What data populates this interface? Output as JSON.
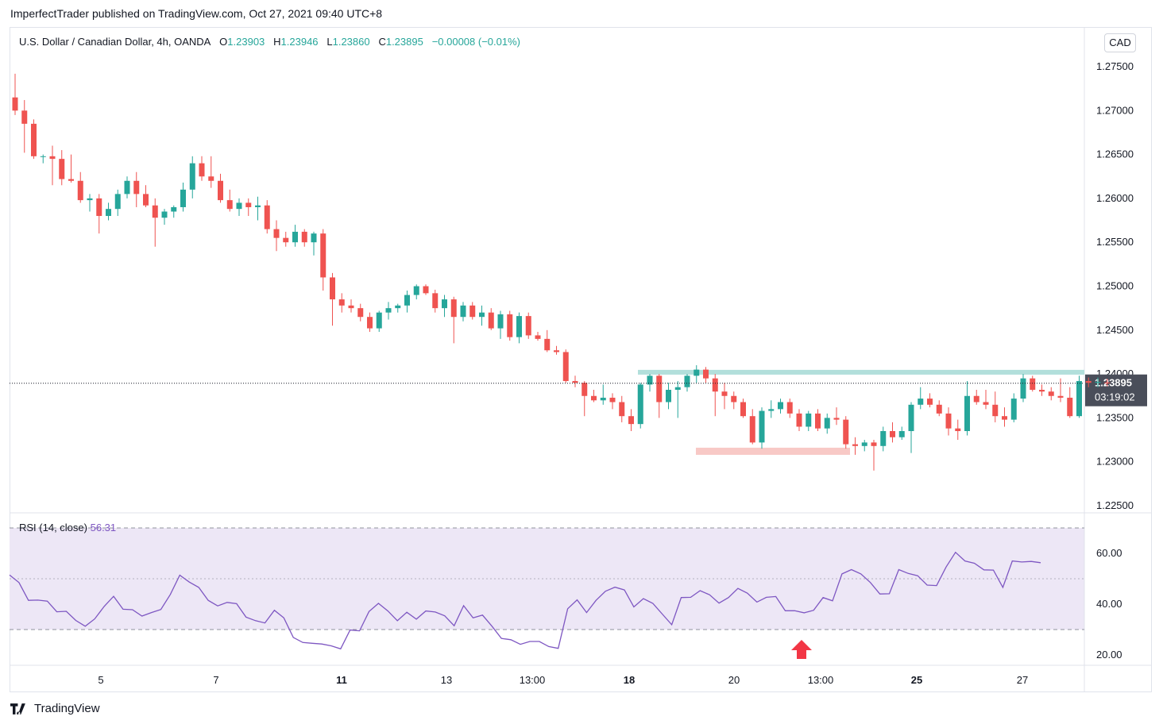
{
  "header": {
    "published": "ImperfectTrader published on TradingView.com, Oct 27, 2021 09:40 UTC+8"
  },
  "legend": {
    "symbol": "U.S. Dollar / Canadian Dollar, 4h, OANDA",
    "o_label": "O",
    "o": "1.23903",
    "h_label": "H",
    "h": "1.23946",
    "l_label": "L",
    "l": "1.23860",
    "c_label": "C",
    "c": "1.23895",
    "change": "−0.00008 (−0.01%)"
  },
  "currency_button": "CAD",
  "last_price": {
    "value": "1.23895",
    "countdown": "03:19:02"
  },
  "rsi_legend": {
    "label": "RSI (14, close)",
    "value": "56.31"
  },
  "footer": {
    "brand": "TradingView"
  },
  "colors": {
    "up": "#26a69a",
    "down": "#ef5350",
    "rsi": "#7e57c2",
    "rsi_band": "#ede7f6",
    "resistance": "#b2dfdb",
    "support": "#f8c9c6",
    "arrow": "#f23645"
  },
  "chart_data": [
    {
      "type": "candlestick",
      "title": "U.S. Dollar / Canadian Dollar, 4h, OANDA",
      "x_tick_labels": [
        "5",
        "7",
        "11",
        "13",
        "13:00",
        "18",
        "20",
        "13:00",
        "25",
        "27"
      ],
      "y_tick_labels": [
        "1.27500",
        "1.27000",
        "1.26500",
        "1.26000",
        "1.25500",
        "1.25000",
        "1.24500",
        "1.24000",
        "1.23500",
        "1.23000",
        "1.22500"
      ],
      "ylim": [
        1.222,
        1.279
      ],
      "candles": [
        [
          1.2715,
          1.2742,
          1.2695,
          1.27
        ],
        [
          1.27,
          1.2712,
          1.2652,
          1.2685
        ],
        [
          1.2685,
          1.269,
          1.2645,
          1.2648
        ],
        [
          1.2648,
          1.265,
          1.264,
          1.2648
        ],
        [
          1.2648,
          1.266,
          1.2615,
          1.2645
        ],
        [
          1.2645,
          1.2655,
          1.2615,
          1.2622
        ],
        [
          1.2622,
          1.265,
          1.2618,
          1.262
        ],
        [
          1.262,
          1.263,
          1.2595,
          1.2598
        ],
        [
          1.2598,
          1.2605,
          1.2585,
          1.26
        ],
        [
          1.26,
          1.2605,
          1.256,
          1.258
        ],
        [
          1.258,
          1.2595,
          1.2575,
          1.2588
        ],
        [
          1.2588,
          1.261,
          1.258,
          1.2605
        ],
        [
          1.2605,
          1.2625,
          1.26,
          1.262
        ],
        [
          1.262,
          1.263,
          1.259,
          1.2605
        ],
        [
          1.2605,
          1.2615,
          1.259,
          1.2592
        ],
        [
          1.2592,
          1.26,
          1.2545,
          1.2578
        ],
        [
          1.2578,
          1.2588,
          1.257,
          1.2585
        ],
        [
          1.2585,
          1.2592,
          1.2578,
          1.259
        ],
        [
          1.259,
          1.2618,
          1.2585,
          1.261
        ],
        [
          1.261,
          1.2648,
          1.26,
          1.264
        ],
        [
          1.264,
          1.2648,
          1.262,
          1.2625
        ],
        [
          1.2625,
          1.2648,
          1.2612,
          1.262
        ],
        [
          1.262,
          1.2628,
          1.2595,
          1.2598
        ],
        [
          1.2598,
          1.261,
          1.2585,
          1.2588
        ],
        [
          1.2588,
          1.26,
          1.258,
          1.2595
        ],
        [
          1.2595,
          1.26,
          1.258,
          1.259
        ],
        [
          1.259,
          1.2602,
          1.2575,
          1.2592
        ],
        [
          1.2592,
          1.2598,
          1.256,
          1.2565
        ],
        [
          1.2565,
          1.2575,
          1.254,
          1.2555
        ],
        [
          1.2555,
          1.2562,
          1.2545,
          1.255
        ],
        [
          1.255,
          1.257,
          1.2545,
          1.2562
        ],
        [
          1.2562,
          1.2565,
          1.2545,
          1.255
        ],
        [
          1.255,
          1.2562,
          1.2535,
          1.256
        ],
        [
          1.256,
          1.2565,
          1.2495,
          1.251
        ],
        [
          1.251,
          1.2515,
          1.2455,
          1.2485
        ],
        [
          1.2485,
          1.2492,
          1.247,
          1.2478
        ],
        [
          1.2478,
          1.2485,
          1.247,
          1.2475
        ],
        [
          1.2475,
          1.248,
          1.246,
          1.2465
        ],
        [
          1.2465,
          1.247,
          1.2448,
          1.2452
        ],
        [
          1.2452,
          1.2472,
          1.2448,
          1.247
        ],
        [
          1.247,
          1.2482,
          1.2462,
          1.2475
        ],
        [
          1.2475,
          1.248,
          1.247,
          1.2478
        ],
        [
          1.2478,
          1.2495,
          1.247,
          1.249
        ],
        [
          1.249,
          1.2502,
          1.2485,
          1.25
        ],
        [
          1.25,
          1.2502,
          1.249,
          1.2492
        ],
        [
          1.2492,
          1.2496,
          1.247,
          1.2475
        ],
        [
          1.2475,
          1.249,
          1.2465,
          1.2485
        ],
        [
          1.2485,
          1.2488,
          1.2435,
          1.2465
        ],
        [
          1.2465,
          1.2482,
          1.246,
          1.2478
        ],
        [
          1.2478,
          1.2482,
          1.2462,
          1.2465
        ],
        [
          1.2465,
          1.2478,
          1.2455,
          1.247
        ],
        [
          1.247,
          1.2475,
          1.245,
          1.2452
        ],
        [
          1.2452,
          1.2472,
          1.244,
          1.2468
        ],
        [
          1.2468,
          1.2472,
          1.2438,
          1.2442
        ],
        [
          1.2442,
          1.247,
          1.2435,
          1.2466
        ],
        [
          1.2466,
          1.247,
          1.244,
          1.2444
        ],
        [
          1.2444,
          1.2448,
          1.2438,
          1.244
        ],
        [
          1.244,
          1.245,
          1.2425,
          1.2427
        ],
        [
          1.2427,
          1.2432,
          1.2422,
          1.2425
        ],
        [
          1.2425,
          1.2428,
          1.239,
          1.2392
        ],
        [
          1.2392,
          1.2398,
          1.2385,
          1.239
        ],
        [
          1.239,
          1.2392,
          1.2352,
          1.2375
        ],
        [
          1.2375,
          1.2382,
          1.2368,
          1.237
        ],
        [
          1.237,
          1.2388,
          1.2365,
          1.2373
        ],
        [
          1.2373,
          1.2378,
          1.236,
          1.2368
        ],
        [
          1.2368,
          1.2375,
          1.2345,
          1.2352
        ],
        [
          1.2352,
          1.236,
          1.2335,
          1.2343
        ],
        [
          1.2343,
          1.239,
          1.2338,
          1.2388
        ],
        [
          1.2388,
          1.24,
          1.238,
          1.2398
        ],
        [
          1.2398,
          1.24,
          1.235,
          1.2368
        ],
        [
          1.2368,
          1.239,
          1.236,
          1.2382
        ],
        [
          1.2382,
          1.2392,
          1.235,
          1.2385
        ],
        [
          1.2385,
          1.24,
          1.238,
          1.2398
        ],
        [
          1.2398,
          1.241,
          1.239,
          1.2405
        ],
        [
          1.2405,
          1.2408,
          1.239,
          1.2395
        ],
        [
          1.2395,
          1.24,
          1.2352,
          1.238
        ],
        [
          1.238,
          1.239,
          1.236,
          1.2375
        ],
        [
          1.2375,
          1.238,
          1.236,
          1.2368
        ],
        [
          1.2368,
          1.2372,
          1.235,
          1.2352
        ],
        [
          1.2352,
          1.236,
          1.232,
          1.2322
        ],
        [
          1.2322,
          1.2362,
          1.2315,
          1.2358
        ],
        [
          1.2358,
          1.237,
          1.235,
          1.236
        ],
        [
          1.236,
          1.2372,
          1.2355,
          1.2368
        ],
        [
          1.2368,
          1.2372,
          1.235,
          1.2355
        ],
        [
          1.2355,
          1.236,
          1.2335,
          1.234
        ],
        [
          1.234,
          1.2358,
          1.2335,
          1.2355
        ],
        [
          1.2355,
          1.236,
          1.2335,
          1.2338
        ],
        [
          1.2338,
          1.2355,
          1.2332,
          1.235
        ],
        [
          1.235,
          1.2362,
          1.2342,
          1.2348
        ],
        [
          1.2348,
          1.2352,
          1.2315,
          1.232
        ],
        [
          1.232,
          1.2328,
          1.2308,
          1.2318
        ],
        [
          1.2318,
          1.2325,
          1.2312,
          1.2322
        ],
        [
          1.2322,
          1.2325,
          1.229,
          1.2318
        ],
        [
          1.2318,
          1.234,
          1.2312,
          1.2335
        ],
        [
          1.2335,
          1.2345,
          1.2322,
          1.2328
        ],
        [
          1.2328,
          1.234,
          1.2325,
          1.2335
        ],
        [
          1.2335,
          1.2368,
          1.231,
          1.2365
        ],
        [
          1.2365,
          1.2385,
          1.236,
          1.2372
        ],
        [
          1.2372,
          1.2378,
          1.2362,
          1.2365
        ],
        [
          1.2365,
          1.237,
          1.2352,
          1.2355
        ],
        [
          1.2355,
          1.2362,
          1.233,
          1.2338
        ],
        [
          1.2338,
          1.2348,
          1.2325,
          1.2335
        ],
        [
          1.2335,
          1.2392,
          1.233,
          1.2375
        ],
        [
          1.2375,
          1.2382,
          1.2365,
          1.2368
        ],
        [
          1.2368,
          1.2382,
          1.236,
          1.2365
        ],
        [
          1.2365,
          1.238,
          1.2345,
          1.2352
        ],
        [
          1.2352,
          1.2362,
          1.234,
          1.2348
        ],
        [
          1.2348,
          1.2378,
          1.2345,
          1.2372
        ],
        [
          1.2372,
          1.24,
          1.2368,
          1.2395
        ],
        [
          1.2395,
          1.2398,
          1.238,
          1.2382
        ],
        [
          1.2382,
          1.2388,
          1.2375,
          1.238
        ],
        [
          1.238,
          1.2385,
          1.237,
          1.2375
        ],
        [
          1.2375,
          1.2395,
          1.2368,
          1.2373
        ],
        [
          1.2373,
          1.2385,
          1.235,
          1.2352
        ],
        [
          1.2352,
          1.2398,
          1.235,
          1.2392
        ],
        [
          1.2392,
          1.2396,
          1.2385,
          1.239
        ],
        [
          1.239,
          1.2396,
          1.2385,
          1.2391
        ],
        [
          1.23903,
          1.23946,
          1.2386,
          1.23895
        ]
      ],
      "resistance_level": 1.2402,
      "support_level": 1.2312
    },
    {
      "type": "line",
      "title": "RSI (14, close)",
      "y_tick_labels": [
        "60.00",
        "40.00",
        "20.00"
      ],
      "ylim": [
        15,
        70
      ],
      "levels": [
        70,
        50,
        30
      ],
      "series": [
        {
          "values": [
            51.5,
            48.5,
            41.5,
            41.6,
            41.2,
            37.0,
            37.2,
            33.6,
            31.3,
            34.2,
            39.1,
            43.1,
            38.0,
            37.8,
            35.3,
            36.7,
            37.9,
            43.8,
            51.4,
            48.7,
            46.6,
            41.5,
            39.3,
            40.7,
            40.2,
            34.9,
            33.5,
            32.6,
            37.6,
            34.6,
            26.9,
            24.9,
            24.6,
            24.3,
            23.6,
            22.4,
            29.8,
            29.5,
            37.1,
            40.3,
            37.3,
            33.5,
            36.8,
            34.1,
            37.3,
            36.9,
            35.4,
            31.5,
            39.4,
            34.6,
            35.7,
            31.3,
            26.5,
            26.0,
            24.2,
            25.3,
            25.3,
            23.3,
            22.6,
            38.2,
            41.7,
            36.7,
            41.5,
            45.1,
            46.7,
            45.6,
            38.9,
            42.2,
            40.3,
            36.1,
            31.9,
            42.6,
            42.7,
            45.3,
            43.7,
            40.4,
            42.6,
            46.2,
            44.3,
            40.8,
            42.7,
            43.0,
            37.4,
            37.4,
            36.6,
            37.6,
            42.6,
            41.3,
            51.9,
            53.6,
            51.9,
            48.5,
            44.0,
            44.1,
            53.6,
            52.1,
            51.2,
            47.5,
            47.3,
            54.6,
            60.4,
            57.0,
            56.1,
            53.5,
            53.4,
            46.6,
            57.0,
            56.6,
            56.8,
            56.31
          ]
        }
      ]
    }
  ]
}
